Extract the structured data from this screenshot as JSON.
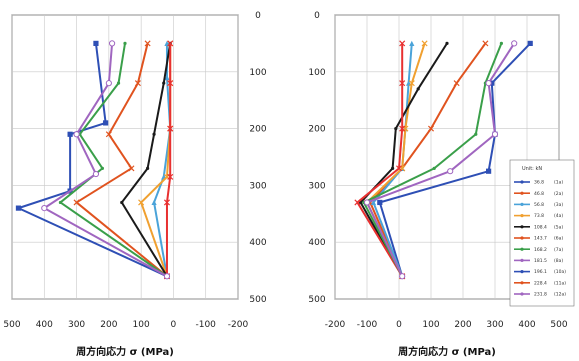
{
  "chart_data": [
    {
      "type": "line",
      "xlabel": "周方向応力 σ (MPa)",
      "ylabel": "",
      "xlim": [
        500,
        -200
      ],
      "ylim": [
        0,
        500
      ],
      "x_ticks": [
        "500",
        "400",
        "300",
        "200",
        "100",
        "0",
        "-100",
        "-200"
      ],
      "y_ticks": [
        "0",
        "100",
        "200",
        "300",
        "400",
        "500"
      ],
      "grid": true,
      "y_axis_side": "right",
      "series": [
        {
          "color": "#2e4fb5",
          "marker": "square",
          "points": [
            [
              240,
              50
            ],
            [
              210,
              190
            ],
            [
              320,
              210
            ],
            [
              320,
              310
            ],
            [
              480,
              340
            ],
            [
              20,
              460
            ]
          ]
        },
        {
          "color": "#e0531f",
          "marker": "x",
          "points": [
            [
              80,
              50
            ],
            [
              110,
              120
            ],
            [
              200,
              210
            ],
            [
              130,
              270
            ],
            [
              300,
              330
            ],
            [
              20,
              460
            ]
          ]
        },
        {
          "color": "#4aa3d9",
          "marker": "triangle",
          "points": [
            [
              20,
              50
            ],
            [
              20,
              110
            ],
            [
              10,
              200
            ],
            [
              30,
              285
            ],
            [
              60,
              330
            ],
            [
              20,
              460
            ]
          ]
        },
        {
          "color": "#f0a030",
          "marker": "x",
          "points": [
            [
              10,
              50
            ],
            [
              10,
              120
            ],
            [
              10,
              200
            ],
            [
              20,
              285
            ],
            [
              100,
              330
            ],
            [
              20,
              460
            ]
          ]
        },
        {
          "color": "#1a1a1a",
          "marker": "dot",
          "points": [
            [
              10,
              50
            ],
            [
              30,
              120
            ],
            [
              60,
              210
            ],
            [
              80,
              270
            ],
            [
              160,
              330
            ],
            [
              20,
              460
            ]
          ]
        },
        {
          "color": "#e83030",
          "marker": "x",
          "points": [
            [
              10,
              50
            ],
            [
              10,
              120
            ],
            [
              10,
              200
            ],
            [
              10,
              285
            ],
            [
              20,
              330
            ],
            [
              20,
              460
            ]
          ]
        },
        {
          "color": "#3a9f4a",
          "marker": "dot",
          "points": [
            [
              150,
              50
            ],
            [
              170,
              120
            ],
            [
              290,
              210
            ],
            [
              220,
              270
            ],
            [
              350,
              330
            ],
            [
              20,
              460
            ]
          ]
        },
        {
          "color": "#a066c0",
          "marker": "circle",
          "points": [
            [
              190,
              50
            ],
            [
              200,
              120
            ],
            [
              300,
              210
            ],
            [
              240,
              280
            ],
            [
              400,
              340
            ],
            [
              20,
              460
            ]
          ]
        }
      ]
    },
    {
      "type": "line",
      "xlabel": "周方向応力 σ (MPa)",
      "ylabel": "",
      "xlim": [
        -200,
        500
      ],
      "ylim": [
        0,
        500
      ],
      "x_ticks": [
        "-200",
        "-100",
        "0",
        "100",
        "200",
        "300",
        "400",
        "500"
      ],
      "y_ticks": [
        "0",
        "100",
        "200",
        "300",
        "400",
        "500"
      ],
      "grid": true,
      "y_axis_side": "left",
      "series": [
        {
          "color": "#2e4fb5",
          "marker": "square",
          "points": [
            [
              410,
              50
            ],
            [
              290,
              120
            ],
            [
              300,
              210
            ],
            [
              280,
              275
            ],
            [
              -60,
              330
            ],
            [
              10,
              460
            ]
          ]
        },
        {
          "color": "#e0531f",
          "marker": "x",
          "points": [
            [
              270,
              50
            ],
            [
              180,
              120
            ],
            [
              100,
              200
            ],
            [
              10,
              270
            ],
            [
              -90,
              330
            ],
            [
              10,
              460
            ]
          ]
        },
        {
          "color": "#4aa3d9",
          "marker": "triangle",
          "points": [
            [
              40,
              50
            ],
            [
              30,
              120
            ],
            [
              20,
              200
            ],
            [
              10,
              270
            ],
            [
              -80,
              330
            ],
            [
              10,
              460
            ]
          ]
        },
        {
          "color": "#f0a030",
          "marker": "x",
          "points": [
            [
              80,
              50
            ],
            [
              40,
              120
            ],
            [
              20,
              200
            ],
            [
              10,
              270
            ],
            [
              -100,
              330
            ],
            [
              10,
              460
            ]
          ]
        },
        {
          "color": "#1a1a1a",
          "marker": "dot",
          "points": [
            [
              150,
              50
            ],
            [
              60,
              130
            ],
            [
              -10,
              200
            ],
            [
              -20,
              270
            ],
            [
              -120,
              330
            ],
            [
              10,
              460
            ]
          ]
        },
        {
          "color": "#e83030",
          "marker": "x",
          "points": [
            [
              10,
              50
            ],
            [
              10,
              120
            ],
            [
              10,
              200
            ],
            [
              0,
              270
            ],
            [
              -130,
              330
            ],
            [
              10,
              460
            ]
          ]
        },
        {
          "color": "#3a9f4a",
          "marker": "dot",
          "points": [
            [
              320,
              50
            ],
            [
              270,
              120
            ],
            [
              240,
              210
            ],
            [
              110,
              270
            ],
            [
              -110,
              330
            ],
            [
              10,
              460
            ]
          ]
        },
        {
          "color": "#a066c0",
          "marker": "circle",
          "points": [
            [
              360,
              50
            ],
            [
              280,
              120
            ],
            [
              300,
              210
            ],
            [
              160,
              275
            ],
            [
              -100,
              330
            ],
            [
              10,
              460
            ]
          ]
        }
      ],
      "legend": {
        "position": "right",
        "title": "Unit: kN",
        "entries": [
          {
            "color": "#2e4fb5",
            "label": "36.8",
            "note": "(1a)"
          },
          {
            "color": "#e0531f",
            "label": "46.8",
            "note": "(2a)"
          },
          {
            "color": "#4aa3d9",
            "label": "56.8",
            "note": "(3a)"
          },
          {
            "color": "#f0a030",
            "label": "73.8",
            "note": "(4a)"
          },
          {
            "color": "#1a1a1a",
            "label": "108.4",
            "note": "(5a)"
          },
          {
            "color": "#e0531f",
            "label": "143.7",
            "note": "(6a)"
          },
          {
            "color": "#3a9f4a",
            "label": "168.2",
            "note": "(7a)"
          },
          {
            "color": "#a066c0",
            "label": "181.5",
            "note": "(8a)"
          },
          {
            "color": "#2e4fb5",
            "label": "196.1",
            "note": "(10a)"
          },
          {
            "color": "#e0531f",
            "label": "228.4",
            "note": "(11a)"
          },
          {
            "color": "#a066c0",
            "label": "231.8",
            "note": "(12a)"
          }
        ]
      }
    }
  ]
}
